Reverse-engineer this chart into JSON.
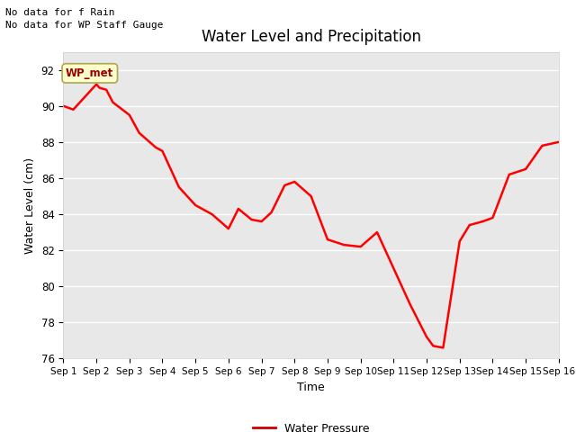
{
  "title": "Water Level and Precipitation",
  "xlabel": "Time",
  "ylabel": "Water Level (cm)",
  "ylim": [
    76,
    93
  ],
  "yticks": [
    76,
    78,
    80,
    82,
    84,
    86,
    88,
    90,
    92
  ],
  "fig_bg_color": "#ffffff",
  "axes_bg_color": "#e8e8e8",
  "line_color": "#ff0000",
  "line_width": 1.8,
  "legend_label": "Water Pressure",
  "legend_line_color": "#cc0000",
  "wp_met_label": "WP_met",
  "wp_met_bg": "#ffffcc",
  "wp_met_text_color": "#990000",
  "annotation_text1": "No data for f Rain",
  "annotation_text2": "No data for WP Staff Gauge",
  "x_data": [
    1,
    1.3,
    2.0,
    2.1,
    2.3,
    2.5,
    3.0,
    3.3,
    3.8,
    4.0,
    4.5,
    5.0,
    5.3,
    5.5,
    6.0,
    6.3,
    6.7,
    7.0,
    7.3,
    7.7,
    8.0,
    8.5,
    9.0,
    9.5,
    10.0,
    10.5,
    11.0,
    11.5,
    12.0,
    12.2,
    12.5,
    13.0,
    13.3,
    13.7,
    14.0,
    14.5,
    15.0,
    15.5,
    16.0
  ],
  "y_data": [
    90.0,
    89.8,
    91.2,
    91.0,
    90.9,
    90.2,
    89.5,
    88.5,
    87.7,
    87.5,
    85.5,
    84.5,
    84.2,
    84.0,
    83.2,
    84.3,
    83.7,
    83.6,
    84.1,
    85.6,
    85.8,
    85.0,
    82.6,
    82.3,
    82.2,
    83.0,
    81.0,
    79.0,
    77.2,
    76.7,
    76.6,
    82.5,
    83.4,
    83.6,
    83.8,
    86.2,
    86.5,
    87.8,
    88.0
  ],
  "xtick_labels": [
    "Sep 1",
    "Sep 2",
    "Sep 3",
    "Sep 4",
    "Sep 5",
    "Sep 6",
    "Sep 7",
    "Sep 8",
    "Sep 9",
    "Sep 10",
    "Sep 11",
    "Sep 12",
    "Sep 13",
    "Sep 14",
    "Sep 15",
    "Sep 16"
  ],
  "xtick_positions": [
    1,
    2,
    3,
    4,
    5,
    6,
    7,
    8,
    9,
    10,
    11,
    12,
    13,
    14,
    15,
    16
  ]
}
